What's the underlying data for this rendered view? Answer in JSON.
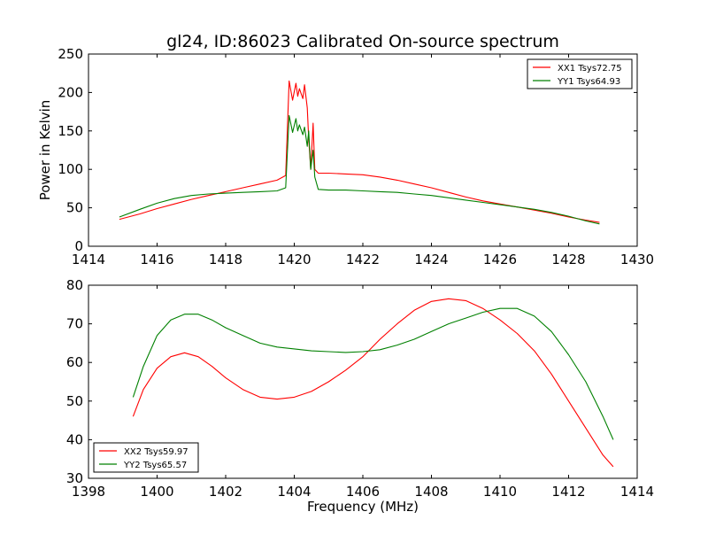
{
  "page": {
    "title": "gl24, ID:86023 Calibrated On-source spectrum"
  },
  "chart_data": [
    {
      "type": "line",
      "title": "gl24, ID:86023 Calibrated On-source spectrum",
      "xlabel": "",
      "ylabel": "Power in Kelvin",
      "xlim": [
        1414,
        1430
      ],
      "ylim": [
        0,
        250
      ],
      "xticks": [
        1414,
        1416,
        1418,
        1420,
        1422,
        1424,
        1426,
        1428,
        1430
      ],
      "yticks": [
        0,
        50,
        100,
        150,
        200,
        250
      ],
      "grid": false,
      "legend": "top-right",
      "series": [
        {
          "name": "XX1 Tsys72.75",
          "color": "#ff0000",
          "x": [
            1414.9,
            1415.5,
            1416.0,
            1416.5,
            1417.0,
            1417.5,
            1418.0,
            1418.5,
            1419.0,
            1419.5,
            1419.75,
            1419.85,
            1419.95,
            1420.05,
            1420.1,
            1420.15,
            1420.25,
            1420.3,
            1420.38,
            1420.42,
            1420.48,
            1420.55,
            1420.6,
            1420.7,
            1421.0,
            1421.5,
            1422.0,
            1422.5,
            1423.0,
            1423.5,
            1424.0,
            1424.5,
            1425.0,
            1425.5,
            1426.0,
            1426.5,
            1427.0,
            1427.5,
            1428.0,
            1428.5,
            1428.9
          ],
          "y": [
            35,
            42,
            49,
            55,
            61,
            66,
            71,
            76,
            81,
            86,
            92,
            215,
            190,
            212,
            195,
            205,
            192,
            210,
            180,
            140,
            100,
            160,
            100,
            95,
            95,
            94,
            93,
            90,
            86,
            81,
            76,
            70,
            64,
            59,
            55,
            51,
            47,
            43,
            38,
            34,
            31
          ]
        },
        {
          "name": "YY1 Tsys64.93",
          "color": "#008000",
          "x": [
            1414.9,
            1415.5,
            1416.0,
            1416.5,
            1417.0,
            1417.5,
            1418.0,
            1418.5,
            1419.0,
            1419.5,
            1419.75,
            1419.85,
            1419.95,
            1420.05,
            1420.1,
            1420.15,
            1420.25,
            1420.3,
            1420.38,
            1420.42,
            1420.48,
            1420.55,
            1420.6,
            1420.7,
            1421.0,
            1421.5,
            1422.0,
            1422.5,
            1423.0,
            1423.5,
            1424.0,
            1424.5,
            1425.0,
            1425.5,
            1426.0,
            1426.5,
            1427.0,
            1427.5,
            1428.0,
            1428.5,
            1428.9
          ],
          "y": [
            38,
            48,
            56,
            62,
            66,
            68,
            69,
            70,
            71,
            72,
            76,
            170,
            148,
            166,
            150,
            158,
            145,
            155,
            130,
            150,
            100,
            125,
            90,
            74,
            73,
            73,
            72,
            71,
            70,
            68,
            66,
            63,
            60,
            57,
            54,
            51,
            48,
            44,
            39,
            33,
            29
          ]
        }
      ]
    },
    {
      "type": "line",
      "title": "",
      "xlabel": "Frequency (MHz)",
      "ylabel": "",
      "xlim": [
        1398,
        1414
      ],
      "ylim": [
        30,
        80
      ],
      "xticks": [
        1398,
        1400,
        1402,
        1404,
        1406,
        1408,
        1410,
        1412,
        1414
      ],
      "yticks": [
        30,
        40,
        50,
        60,
        70,
        80
      ],
      "grid": false,
      "legend": "bottom-left",
      "series": [
        {
          "name": "XX2 Tsys59.97",
          "color": "#ff0000",
          "x": [
            1399.3,
            1399.6,
            1400.0,
            1400.4,
            1400.8,
            1401.2,
            1401.6,
            1402.0,
            1402.5,
            1403.0,
            1403.5,
            1404.0,
            1404.5,
            1405.0,
            1405.5,
            1406.0,
            1406.5,
            1407.0,
            1407.5,
            1408.0,
            1408.5,
            1409.0,
            1409.5,
            1410.0,
            1410.5,
            1411.0,
            1411.5,
            1412.0,
            1412.5,
            1413.0,
            1413.3
          ],
          "y": [
            46,
            53,
            58.5,
            61.5,
            62.5,
            61.5,
            59,
            56,
            53,
            51,
            50.5,
            51,
            52.5,
            55,
            58,
            61.5,
            66,
            70,
            73.5,
            75.8,
            76.5,
            76,
            74,
            71,
            67.5,
            63,
            57,
            50,
            43,
            36,
            33
          ]
        },
        {
          "name": "YY2 Tsys65.57",
          "color": "#008000",
          "x": [
            1399.3,
            1399.6,
            1400.0,
            1400.4,
            1400.8,
            1401.2,
            1401.6,
            1402.0,
            1402.5,
            1403.0,
            1403.5,
            1404.0,
            1404.5,
            1405.0,
            1405.5,
            1406.0,
            1406.5,
            1407.0,
            1407.5,
            1408.0,
            1408.5,
            1409.0,
            1409.5,
            1410.0,
            1410.5,
            1411.0,
            1411.5,
            1412.0,
            1412.5,
            1413.0,
            1413.3
          ],
          "y": [
            51,
            59,
            67,
            71,
            72.5,
            72.5,
            71,
            69,
            67,
            65,
            64,
            63.5,
            63,
            62.8,
            62.6,
            62.8,
            63.3,
            64.5,
            66,
            68,
            70,
            71.5,
            73,
            74,
            74,
            72,
            68,
            62,
            55,
            46,
            40
          ]
        }
      ]
    }
  ]
}
